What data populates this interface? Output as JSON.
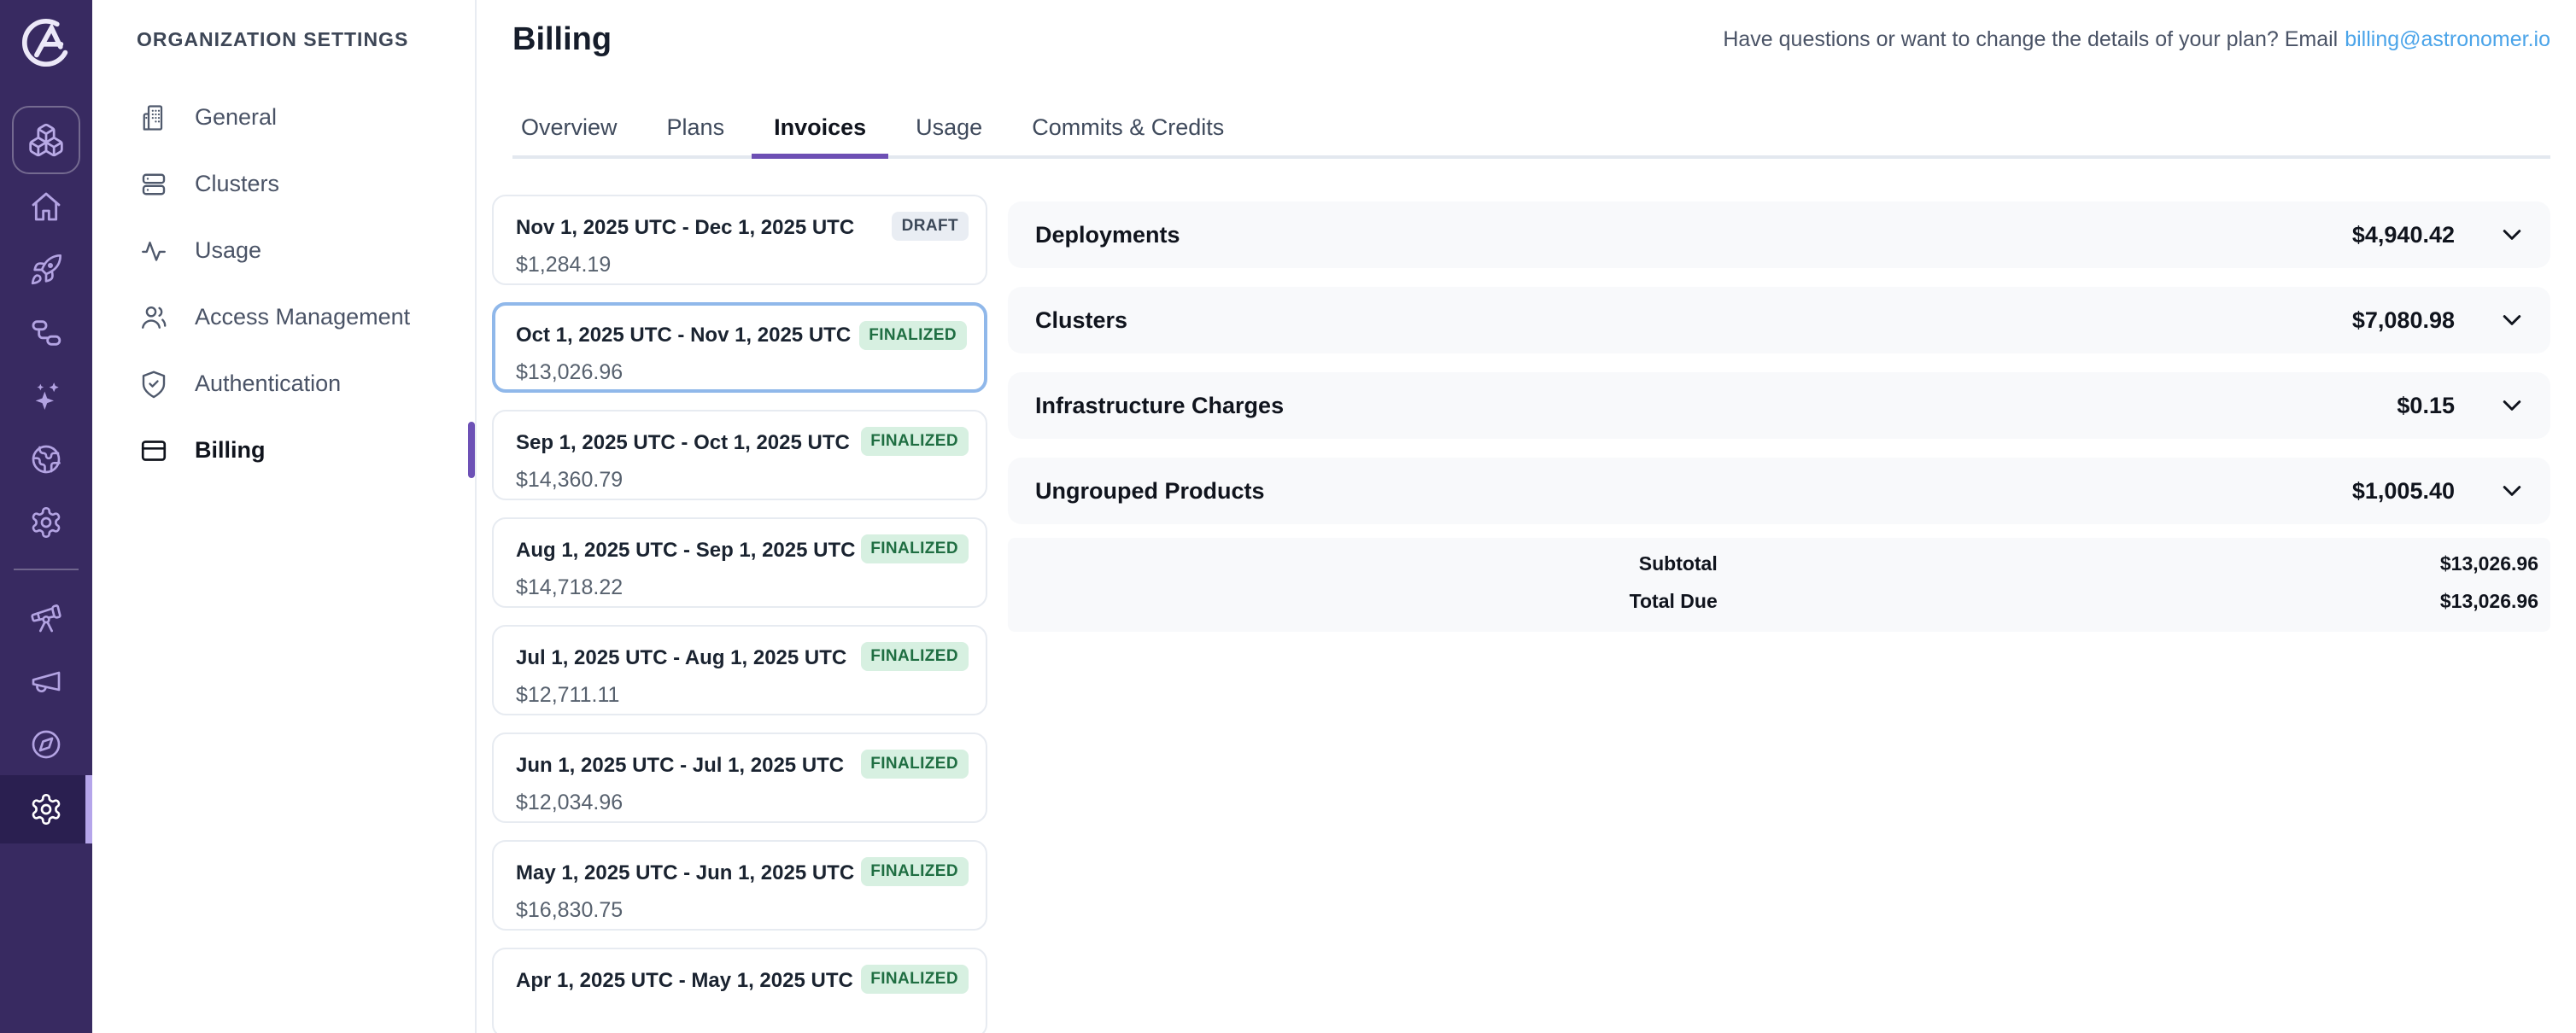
{
  "header": {
    "title": "Billing",
    "help_text": "Have questions or want to change the details of your plan? Email",
    "help_link_label": "billing@astronomer.io"
  },
  "icon_rail": {
    "items": [
      {
        "icon": "cubes-icon",
        "type": "workspace"
      },
      {
        "icon": "home-icon"
      },
      {
        "icon": "rocket-icon"
      },
      {
        "icon": "workflow-icon"
      },
      {
        "icon": "sparkles-icon"
      },
      {
        "icon": "globe-icon"
      },
      {
        "icon": "gear-icon"
      },
      {
        "divider": true
      },
      {
        "icon": "telescope-icon"
      },
      {
        "icon": "megaphone-icon"
      },
      {
        "icon": "compass-icon"
      },
      {
        "icon": "gear-icon",
        "active": true
      }
    ]
  },
  "sidebar": {
    "header": "ORGANIZATION SETTINGS",
    "items": [
      {
        "label": "General",
        "icon": "building-icon",
        "active": false
      },
      {
        "label": "Clusters",
        "icon": "servers-icon",
        "active": false
      },
      {
        "label": "Usage",
        "icon": "activity-icon",
        "active": false
      },
      {
        "label": "Access Management",
        "icon": "users-icon",
        "active": false
      },
      {
        "label": "Authentication",
        "icon": "shield-check-icon",
        "active": false
      },
      {
        "label": "Billing",
        "icon": "credit-card-icon",
        "active": true
      }
    ]
  },
  "tabs": [
    {
      "label": "Overview",
      "active": false
    },
    {
      "label": "Plans",
      "active": false
    },
    {
      "label": "Invoices",
      "active": true
    },
    {
      "label": "Usage",
      "active": false
    },
    {
      "label": "Commits & Credits",
      "active": false
    }
  ],
  "invoices": [
    {
      "period": "Nov 1, 2025 UTC - Dec 1, 2025 UTC",
      "amount": "$1,284.19",
      "status": "DRAFT",
      "selected": false
    },
    {
      "period": "Oct 1, 2025 UTC - Nov 1, 2025 UTC",
      "amount": "$13,026.96",
      "status": "FINALIZED",
      "selected": true
    },
    {
      "period": "Sep 1, 2025 UTC - Oct 1, 2025 UTC",
      "amount": "$14,360.79",
      "status": "FINALIZED",
      "selected": false
    },
    {
      "period": "Aug 1, 2025 UTC - Sep 1, 2025 UTC",
      "amount": "$14,718.22",
      "status": "FINALIZED",
      "selected": false
    },
    {
      "period": "Jul 1, 2025 UTC - Aug 1, 2025 UTC",
      "amount": "$12,711.11",
      "status": "FINALIZED",
      "selected": false
    },
    {
      "period": "Jun 1, 2025 UTC - Jul 1, 2025 UTC",
      "amount": "$12,034.96",
      "status": "FINALIZED",
      "selected": false
    },
    {
      "period": "May 1, 2025 UTC - Jun 1, 2025 UTC",
      "amount": "$16,830.75",
      "status": "FINALIZED",
      "selected": false
    },
    {
      "period": "Apr 1, 2025 UTC - May 1, 2025 UTC",
      "amount": "",
      "status": "FINALIZED",
      "selected": false
    }
  ],
  "invoice_detail": {
    "groups": [
      {
        "label": "Deployments",
        "amount": "$4,940.42"
      },
      {
        "label": "Clusters",
        "amount": "$7,080.98"
      },
      {
        "label": "Infrastructure Charges",
        "amount": "$0.15"
      },
      {
        "label": "Ungrouped Products",
        "amount": "$1,005.40"
      }
    ],
    "summary": [
      {
        "label": "Subtotal",
        "amount": "$13,026.96"
      },
      {
        "label": "Total Due",
        "amount": "$13,026.96"
      }
    ]
  },
  "colors": {
    "rail_bg": "#382a61",
    "rail_active_bg": "#2a1f50",
    "rail_active_bar": "#b5a5ea",
    "accent_purple": "#6d4fb4",
    "link_blue": "#4ba4e9",
    "selected_card_border": "#90b8ea",
    "badge_finalized_bg": "#d7f0e1",
    "badge_finalized_text": "#1f6e42",
    "badge_draft_bg": "#e9edf3",
    "badge_draft_text": "#3c4858",
    "detail_row_bg": "#f8f9fb"
  }
}
